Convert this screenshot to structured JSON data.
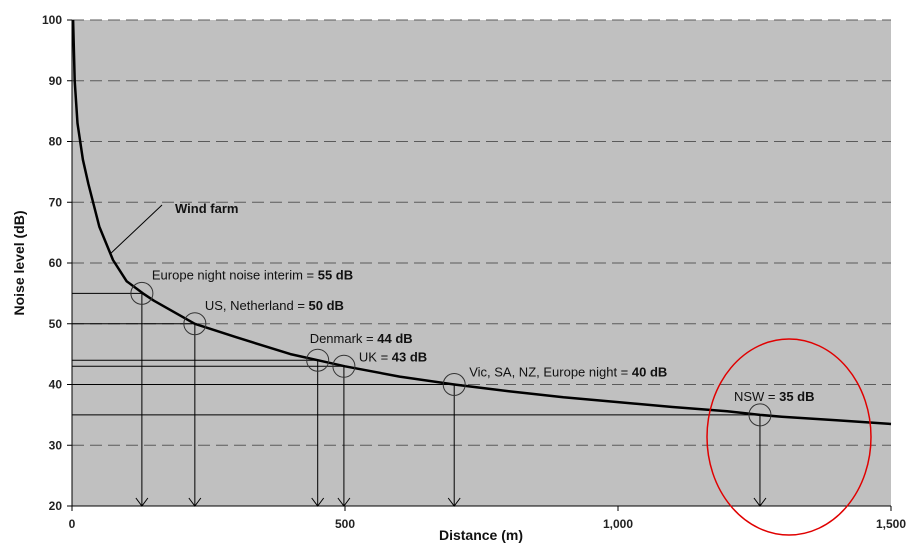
{
  "chart_data": {
    "type": "line",
    "xlabel": "Distance (m)",
    "ylabel": "Noise level (dB)",
    "xlim": [
      0,
      1500
    ],
    "ylim": [
      20,
      100
    ],
    "x_ticks": [
      "0",
      "500",
      "1,000",
      "1,500"
    ],
    "x_tick_values": [
      0,
      500,
      1000,
      1500
    ],
    "y_ticks": [
      "20",
      "30",
      "40",
      "50",
      "60",
      "70",
      "80",
      "90",
      "100"
    ],
    "y_tick_values": [
      20,
      30,
      40,
      50,
      60,
      70,
      80,
      90,
      100
    ],
    "grid": "horizontal-dashed",
    "background": "#c0c0c0",
    "series": [
      {
        "name": "Wind farm",
        "x": [
          2,
          5,
          10,
          20,
          30,
          50,
          75,
          100,
          130,
          150,
          225,
          300,
          400,
          450,
          500,
          600,
          700,
          800,
          900,
          1000,
          1100,
          1200,
          1260,
          1300,
          1400,
          1500
        ],
        "y": [
          100,
          90,
          83,
          77,
          73,
          66,
          60.5,
          57,
          55,
          53.8,
          50,
          47.8,
          45,
          44,
          43,
          41.3,
          40,
          38.9,
          37.9,
          37.1,
          36.3,
          35.6,
          35,
          34.7,
          34.1,
          33.5
        ],
        "color": "#000000"
      }
    ],
    "annotations": [
      {
        "prefix": "Europe night noise interim = ",
        "value": "55 dB",
        "x": 128,
        "y": 55
      },
      {
        "prefix": "US, Netherland = ",
        "value": "50 dB",
        "x": 225,
        "y": 50
      },
      {
        "prefix": "Denmark = ",
        "value": "44 dB",
        "x": 450,
        "y": 44
      },
      {
        "prefix": "UK = ",
        "value": "43 dB",
        "x": 498,
        "y": 43
      },
      {
        "prefix": "Vic, SA, NZ, Europe night = ",
        "value": "40 dB",
        "x": 700,
        "y": 40
      },
      {
        "prefix": "NSW = ",
        "value": "35 dB",
        "x": 1260,
        "y": 35
      }
    ],
    "highlight_color": "#e00000"
  }
}
